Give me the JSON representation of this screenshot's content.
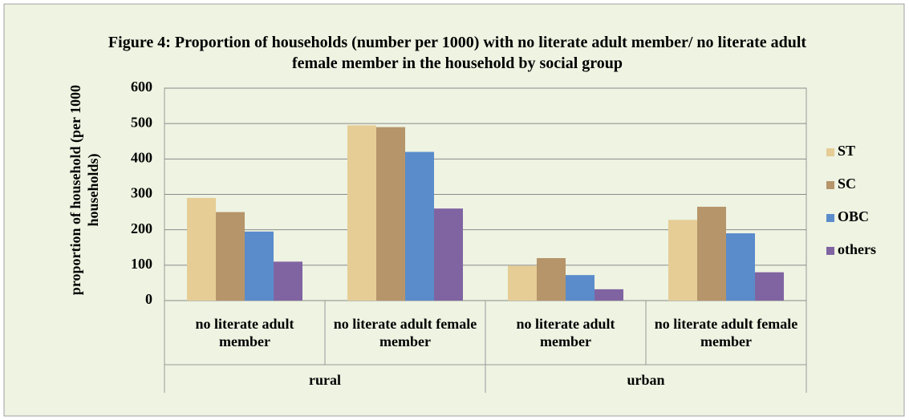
{
  "chart_data": {
    "type": "bar",
    "title": "Figure 4: Proportion of households (number per 1000) with no literate adult member/ no literate adult female member  in the household by social group",
    "y_label": "proportion of household (per 1000 households)",
    "groups": [
      {
        "name": "rural",
        "categories": [
          "no literate adult member",
          "no literate adult female member"
        ]
      },
      {
        "name": "urban",
        "categories": [
          "no literate adult member",
          "no literate adult female member"
        ]
      }
    ],
    "series": [
      {
        "name": "ST",
        "color": "#e6cd95",
        "values": [
          290,
          495,
          98,
          228
        ]
      },
      {
        "name": "SC",
        "color": "#b6956a",
        "values": [
          250,
          490,
          120,
          265
        ]
      },
      {
        "name": "OBC",
        "color": "#5a8ccc",
        "values": [
          195,
          420,
          72,
          190
        ]
      },
      {
        "name": "others",
        "color": "#8064a2",
        "values": [
          110,
          260,
          32,
          80
        ]
      }
    ],
    "ylim": [
      0,
      600
    ],
    "yticks": [
      0,
      100,
      200,
      300,
      400,
      500,
      600
    ],
    "grid": true,
    "legend": "right"
  }
}
